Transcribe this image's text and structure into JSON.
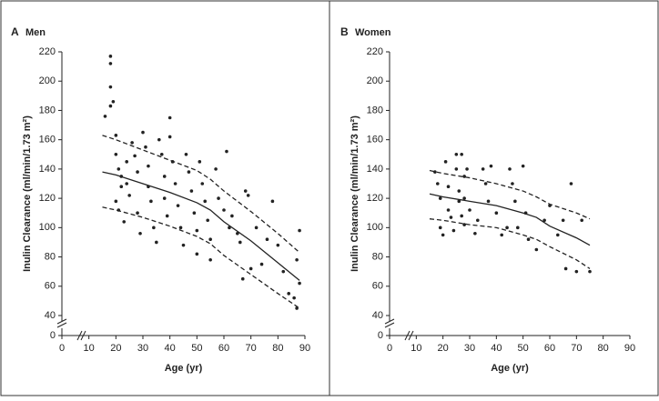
{
  "chart_data": [
    {
      "type": "scatter",
      "panel": "A",
      "title": "Men",
      "xlabel": "Age (yr)",
      "ylabel": "Inulin Clearance (ml/min/1.73 m²)",
      "color": "#222222",
      "xlim": [
        0,
        90
      ],
      "xticks": [
        0,
        10,
        20,
        30,
        40,
        50,
        60,
        70,
        80,
        90
      ],
      "ylim": [
        0,
        220
      ],
      "yticks": [
        0,
        40,
        60,
        80,
        100,
        120,
        140,
        160,
        180,
        200,
        220
      ],
      "ybreak": [
        0,
        40
      ],
      "points": {
        "x": [
          16,
          18,
          18,
          18,
          19,
          18,
          20,
          20,
          21,
          22,
          22,
          20,
          21,
          23,
          24,
          24,
          25,
          26,
          27,
          28,
          28,
          29,
          30,
          31,
          32,
          32,
          33,
          34,
          35,
          36,
          37,
          38,
          38,
          39,
          40,
          40,
          41,
          42,
          43,
          44,
          45,
          46,
          47,
          48,
          49,
          50,
          50,
          51,
          52,
          53,
          54,
          55,
          55,
          57,
          58,
          60,
          61,
          62,
          63,
          65,
          66,
          67,
          68,
          69,
          70,
          72,
          74,
          76,
          78,
          80,
          82,
          84,
          86,
          87,
          88,
          87,
          88
        ],
        "y": [
          176,
          217,
          212,
          196,
          186,
          183,
          163,
          150,
          140,
          135,
          128,
          118,
          112,
          104,
          145,
          130,
          122,
          158,
          149,
          138,
          110,
          96,
          165,
          155,
          142,
          128,
          118,
          100,
          90,
          160,
          150,
          135,
          120,
          108,
          175,
          162,
          145,
          130,
          115,
          100,
          88,
          150,
          138,
          125,
          110,
          98,
          82,
          145,
          130,
          118,
          105,
          92,
          78,
          140,
          120,
          112,
          152,
          100,
          108,
          96,
          90,
          65,
          125,
          122,
          72,
          100,
          75,
          92,
          118,
          88,
          70,
          55,
          52,
          45,
          98,
          78,
          62
        ]
      },
      "curves": [
        {
          "dash": false,
          "x": [
            15,
            20,
            30,
            40,
            50,
            55,
            60,
            70,
            80,
            88
          ],
          "y": [
            138,
            136,
            130,
            124,
            117,
            112,
            104,
            91,
            76,
            64
          ]
        },
        {
          "dash": true,
          "x": [
            15,
            20,
            30,
            40,
            50,
            55,
            60,
            70,
            80,
            88
          ],
          "y": [
            163,
            160,
            153,
            146,
            139,
            133,
            125,
            111,
            96,
            83
          ]
        },
        {
          "dash": true,
          "x": [
            15,
            20,
            30,
            40,
            50,
            55,
            60,
            70,
            80,
            88
          ],
          "y": [
            114,
            112,
            107,
            101,
            94,
            89,
            81,
            68,
            55,
            45
          ]
        }
      ]
    },
    {
      "type": "scatter",
      "panel": "B",
      "title": "Women",
      "xlabel": "Age (yr)",
      "ylabel": "Inulin Clearance (ml/min/1.73 m²)",
      "color": "#222222",
      "xlim": [
        0,
        90
      ],
      "xticks": [
        0,
        10,
        20,
        30,
        40,
        50,
        60,
        70,
        80,
        90
      ],
      "ylim": [
        0,
        220
      ],
      "yticks": [
        0,
        40,
        60,
        80,
        100,
        120,
        140,
        160,
        180,
        200,
        220
      ],
      "ybreak": [
        0,
        40
      ],
      "points": {
        "x": [
          17,
          18,
          19,
          19,
          20,
          21,
          22,
          22,
          23,
          24,
          25,
          25,
          26,
          26,
          27,
          27,
          28,
          28,
          28,
          29,
          30,
          32,
          33,
          35,
          36,
          37,
          38,
          40,
          42,
          44,
          45,
          46,
          47,
          48,
          50,
          51,
          52,
          55,
          58,
          60,
          63,
          65,
          66,
          68,
          70,
          72,
          75
        ],
        "y": [
          138,
          130,
          120,
          100,
          95,
          145,
          128,
          112,
          107,
          98,
          150,
          140,
          125,
          118,
          108,
          150,
          135,
          120,
          102,
          140,
          112,
          96,
          105,
          140,
          130,
          118,
          142,
          110,
          95,
          100,
          140,
          130,
          118,
          100,
          142,
          110,
          92,
          85,
          105,
          115,
          95,
          105,
          72,
          130,
          70,
          105,
          70
        ]
      },
      "curves": [
        {
          "dash": false,
          "x": [
            15,
            20,
            30,
            40,
            50,
            55,
            60,
            70,
            75
          ],
          "y": [
            123,
            121,
            118,
            115,
            110,
            107,
            101,
            93,
            88
          ]
        },
        {
          "dash": true,
          "x": [
            15,
            20,
            30,
            40,
            50,
            55,
            60,
            70,
            75
          ],
          "y": [
            139,
            137,
            134,
            130,
            125,
            121,
            116,
            110,
            106
          ]
        },
        {
          "dash": true,
          "x": [
            15,
            20,
            30,
            40,
            50,
            55,
            60,
            70,
            75
          ],
          "y": [
            106,
            105,
            102,
            100,
            95,
            92,
            87,
            78,
            72
          ]
        }
      ]
    }
  ]
}
